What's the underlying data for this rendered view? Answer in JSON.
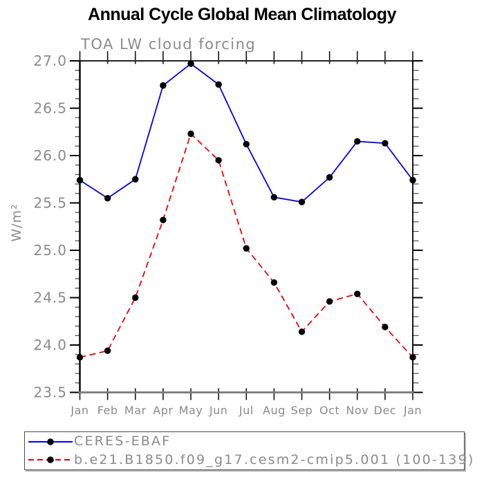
{
  "chart_data": {
    "type": "line",
    "title": "Annual Cycle Global Mean Climatology",
    "subtitle": "TOA LW cloud forcing",
    "ylabel": "W/m²",
    "xlabel": "",
    "categories": [
      "Jan",
      "Feb",
      "Mar",
      "Apr",
      "May",
      "Jun",
      "Jul",
      "Aug",
      "Sep",
      "Oct",
      "Nov",
      "Dec",
      "Jan"
    ],
    "ylim": [
      23.5,
      27.0
    ],
    "ytick_step": 0.5,
    "yminor_step": 0.1,
    "y_tick_labels": [
      "27.0",
      "26.5",
      "26.0",
      "25.5",
      "25.0",
      "24.5",
      "24.0",
      "23.5"
    ],
    "grid": false,
    "legend_position": "bottom-left-box",
    "series": [
      {
        "name": "CERES-EBAF",
        "color": "#0000ee",
        "line_style": "solid",
        "marker": "circle",
        "marker_color": "#000000",
        "values": [
          25.74,
          25.55,
          25.75,
          26.74,
          26.97,
          26.75,
          26.12,
          25.56,
          25.51,
          25.77,
          26.15,
          26.13,
          25.74
        ]
      },
      {
        "name": "b.e21.B1850.f09_g17.cesm2-cmip5.001 (100-139)",
        "color": "#ee0000",
        "line_style": "dashed",
        "marker": "circle",
        "marker_color": "#000000",
        "values": [
          23.87,
          23.94,
          24.5,
          25.32,
          26.23,
          25.95,
          25.02,
          24.66,
          24.14,
          24.46,
          24.54,
          24.19,
          23.87
        ]
      }
    ],
    "colors": {
      "axis": "#000000",
      "bottom_axis": "#777777",
      "tick_label_text": "#8a8a8a",
      "title_text": "#000000"
    }
  }
}
